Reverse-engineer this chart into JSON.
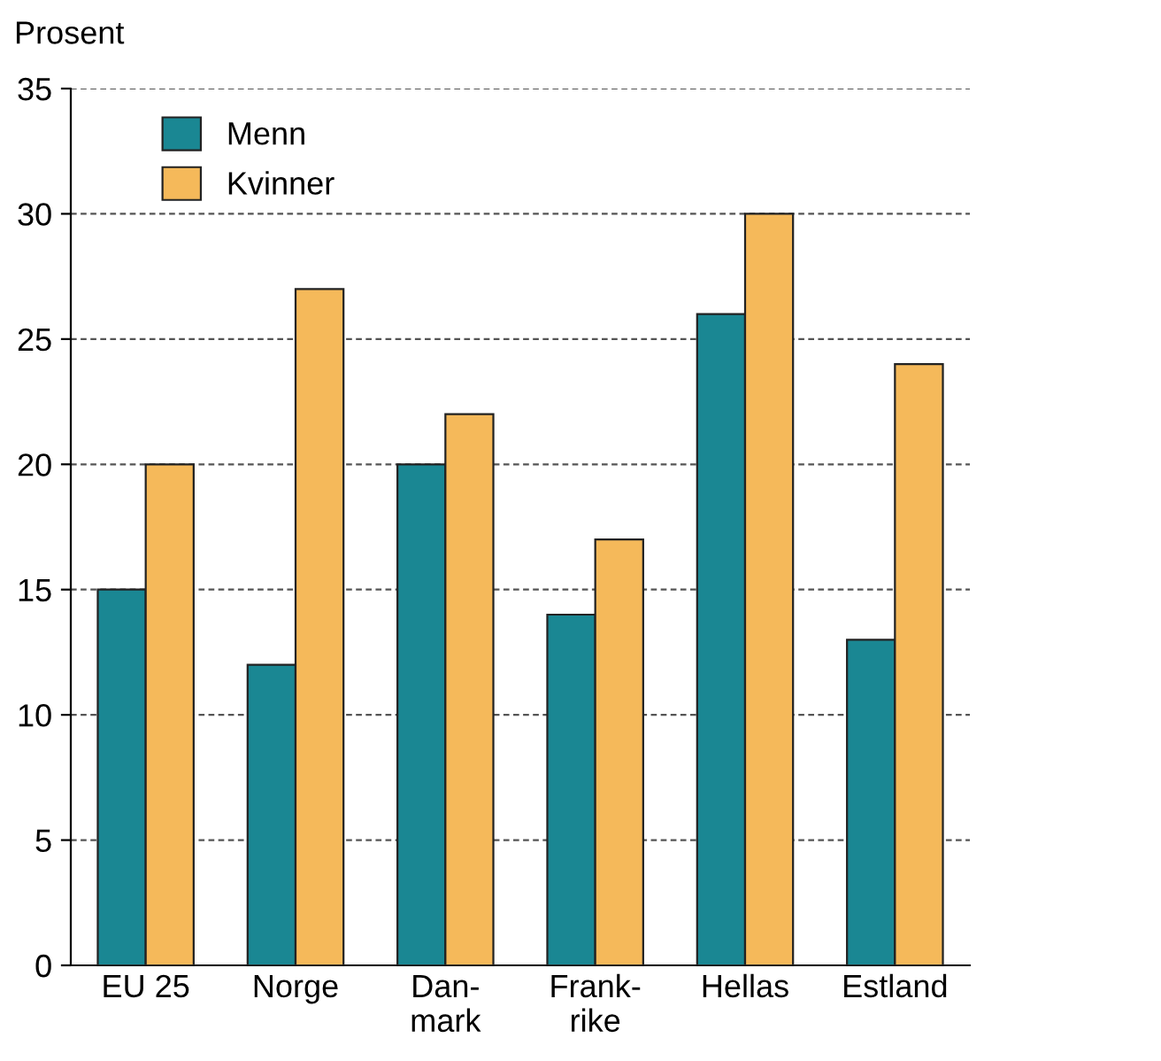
{
  "chart_data": {
    "type": "bar",
    "ylabel": "Prosent",
    "categories": [
      "EU 25",
      "Norge",
      "Dan-\nmark",
      "Frank-\nrike",
      "Hellas",
      "Estland"
    ],
    "series": [
      {
        "name": "Menn",
        "color": "#1a8793",
        "values": [
          15,
          12,
          20,
          14,
          26,
          13
        ]
      },
      {
        "name": "Kvinner",
        "color": "#f5b95a",
        "values": [
          20,
          27,
          22,
          17,
          30,
          24
        ]
      }
    ],
    "ylim": [
      0,
      35
    ],
    "yticks": [
      0,
      5,
      10,
      15,
      20,
      25,
      30,
      35
    ],
    "grid": "y",
    "legend": "top left"
  }
}
